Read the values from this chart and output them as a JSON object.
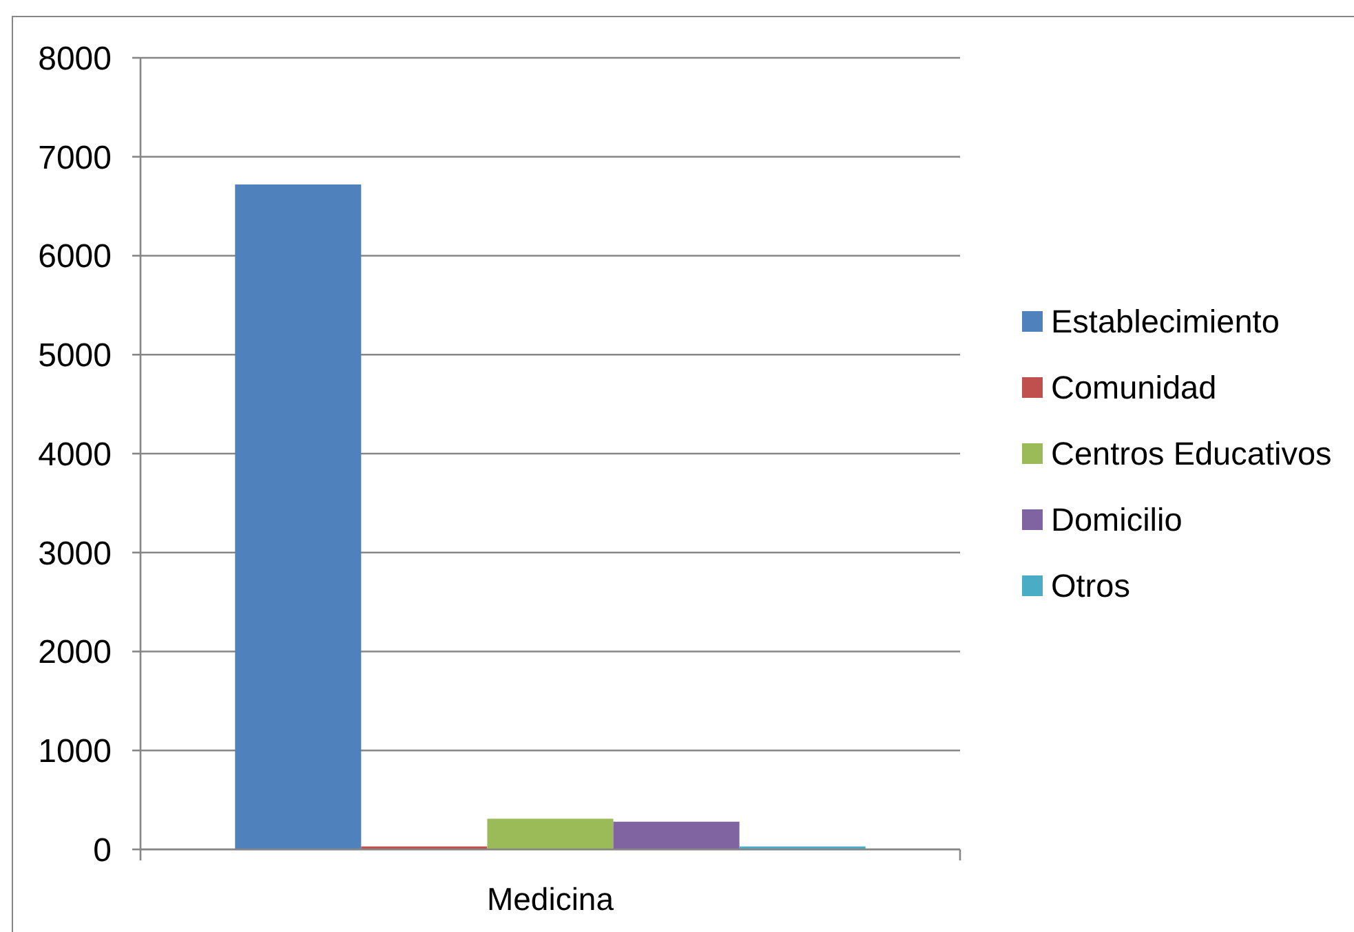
{
  "chart_data": {
    "type": "bar",
    "categories": [
      "Medicina"
    ],
    "series": [
      {
        "name": "Establecimiento",
        "color": "#4f81bd",
        "values": [
          6720
        ]
      },
      {
        "name": "Comunidad",
        "color": "#c0504d",
        "values": [
          30
        ]
      },
      {
        "name": "Centros Educativos",
        "color": "#9bbb59",
        "values": [
          310
        ]
      },
      {
        "name": "Domicilio",
        "color": "#8064a2",
        "values": [
          280
        ]
      },
      {
        "name": "Otros",
        "color": "#4bacc6",
        "values": [
          30
        ]
      }
    ],
    "ylim": [
      0,
      8000
    ],
    "yticks": [
      0,
      1000,
      2000,
      3000,
      4000,
      5000,
      6000,
      7000,
      8000
    ],
    "grid": "y",
    "legend": "right"
  }
}
